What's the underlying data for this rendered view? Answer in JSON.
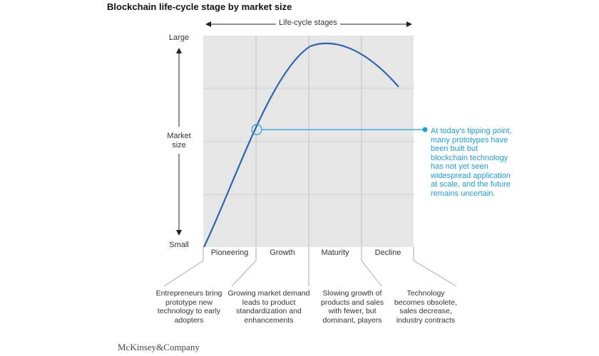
{
  "title": "Blockchain life-cycle stage by market size",
  "header_label": "Life-cycle stages",
  "y_axis": {
    "top": "Large",
    "middle": "Market\nsize",
    "bottom": "Small"
  },
  "stages": [
    "Pioneering",
    "Growth",
    "Maturity",
    "Decline"
  ],
  "descriptions": [
    "Entrepreneurs bring prototype new technology to early adopters",
    "Growing market demand leads to product standardization and enhancements",
    "Slowing growth of products and sales with fewer, but dominant, players",
    "Technology becomes obsolete, sales decrease, industry contracts"
  ],
  "callout": "At today’s tipping point, many prototypes have been built but blockchain technology has not yet seen widespread application at scale, and the future remains uncertain.",
  "source": "McKinsey&Company",
  "colors": {
    "curve": "#2c64b0",
    "callout": "#1a9fd6",
    "panel": "#e6e6e6",
    "grid": "#c9c9c9"
  }
}
